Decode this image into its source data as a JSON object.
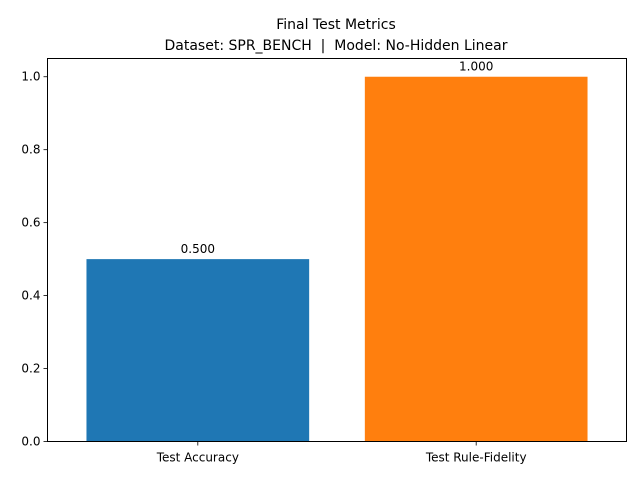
{
  "chart_data": {
    "type": "bar",
    "title": "Final Test Metrics",
    "subtitle": "Dataset: SPR_BENCH  |  Model: No-Hidden Linear",
    "categories": [
      "Test Accuracy",
      "Test Rule-Fidelity"
    ],
    "values": [
      0.5,
      1.0
    ],
    "value_labels": [
      "0.500",
      "1.000"
    ],
    "colors": [
      "#1f77b4",
      "#ff7f0e"
    ],
    "ylim": [
      0,
      1.05
    ],
    "yticks": [
      0.0,
      0.2,
      0.4,
      0.6,
      0.8,
      1.0
    ],
    "ytick_labels": [
      "0.0",
      "0.2",
      "0.4",
      "0.6",
      "0.8",
      "1.0"
    ],
    "grid": false,
    "xlabel": "",
    "ylabel": ""
  }
}
